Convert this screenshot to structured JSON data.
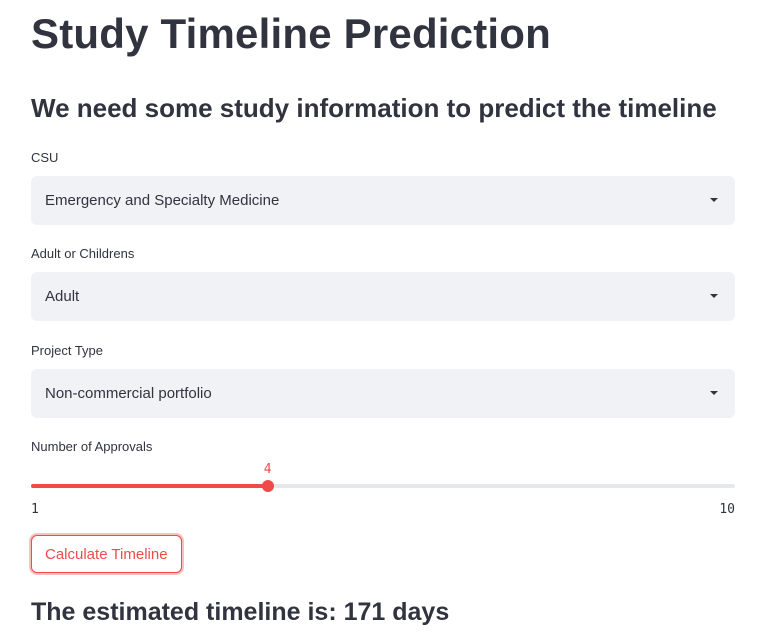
{
  "page": {
    "title": "Study Timeline Prediction",
    "subheading": "We need some study information to predict the timeline"
  },
  "form": {
    "csu": {
      "label": "CSU",
      "selected": "Emergency and Specialty Medicine"
    },
    "population": {
      "label": "Adult or Childrens",
      "selected": "Adult"
    },
    "project_type": {
      "label": "Project Type",
      "selected": "Non-commercial portfolio"
    },
    "approvals": {
      "label": "Number of Approvals",
      "value": 4,
      "min": 1,
      "max": 10
    },
    "calculate_label": "Calculate Timeline"
  },
  "result": {
    "text": "The estimated timeline is: 171 days"
  },
  "colors": {
    "accent": "#ef4b4b",
    "text": "#31333f",
    "select_bg": "#f0f2f6"
  },
  "icons": {
    "dropdown": "chevron-down-icon"
  }
}
